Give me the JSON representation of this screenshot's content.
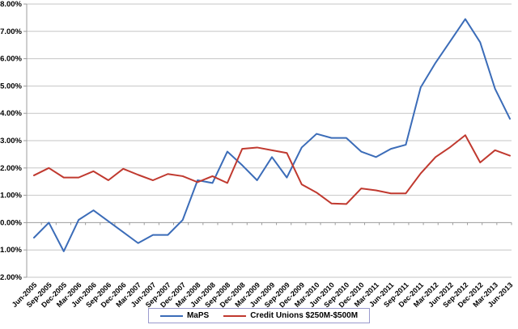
{
  "chart_data": {
    "type": "line",
    "title": "",
    "xlabel": "",
    "ylabel": "",
    "ylim": [
      -2,
      8
    ],
    "y_step": 1,
    "yticks": [
      "8.00%",
      "7.00%",
      "6.00%",
      "5.00%",
      "4.00%",
      "3.00%",
      "2.00%",
      "1.00%",
      "0.00%",
      "-1.00%",
      "-2.00%"
    ],
    "grid": true,
    "legend_position": "bottom-center",
    "categories": [
      "Jun-2005",
      "Sep-2005",
      "Dec-2005",
      "Mar-2006",
      "Jun-2006",
      "Sep-2006",
      "Dec-2006",
      "Mar-2007",
      "Jun-2007",
      "Sep-2007",
      "Dec-2007",
      "Mar-2008",
      "Jun-2008",
      "Sep-2008",
      "Dec-2008",
      "Mar-2009",
      "Jun-2009",
      "Sep-2009",
      "Dec-2009",
      "Mar-2010",
      "Jun-2010",
      "Sep-2010",
      "Dec-2010",
      "Mar-2011",
      "Jun-2011",
      "Sep-2011",
      "Dec-2011",
      "Mar-2012",
      "Jun-2012",
      "Sep-2012",
      "Dec-2012",
      "Mar-2013",
      "Jun-2013"
    ],
    "series": [
      {
        "name": "MaPS",
        "color": "#3b6cb8",
        "values": [
          -0.55,
          0.0,
          -1.05,
          0.1,
          0.45,
          0.05,
          -0.35,
          -0.75,
          -0.45,
          -0.45,
          0.1,
          1.55,
          1.45,
          2.6,
          2.1,
          1.55,
          2.4,
          1.65,
          2.75,
          3.25,
          3.1,
          3.1,
          2.6,
          2.4,
          2.7,
          2.85,
          4.95,
          5.85,
          6.65,
          7.45,
          6.6,
          4.9,
          3.8
        ]
      },
      {
        "name": "Credit Unions $250M-$500M",
        "color": "#c0392f",
        "values": [
          1.73,
          2.0,
          1.65,
          1.65,
          1.88,
          1.55,
          1.97,
          1.75,
          1.55,
          1.78,
          1.7,
          1.48,
          1.7,
          1.45,
          2.7,
          2.75,
          2.65,
          2.55,
          1.4,
          1.1,
          0.7,
          0.68,
          1.25,
          1.18,
          1.07,
          1.07,
          1.8,
          2.4,
          2.77,
          3.2,
          2.2,
          2.65,
          2.45
        ]
      }
    ],
    "colors": {
      "gridline": "#c6c6c6",
      "axis": "#9c9c9c",
      "tick_label": "#000000",
      "legend_border": "#9999cc",
      "background": "#ffffff"
    }
  }
}
